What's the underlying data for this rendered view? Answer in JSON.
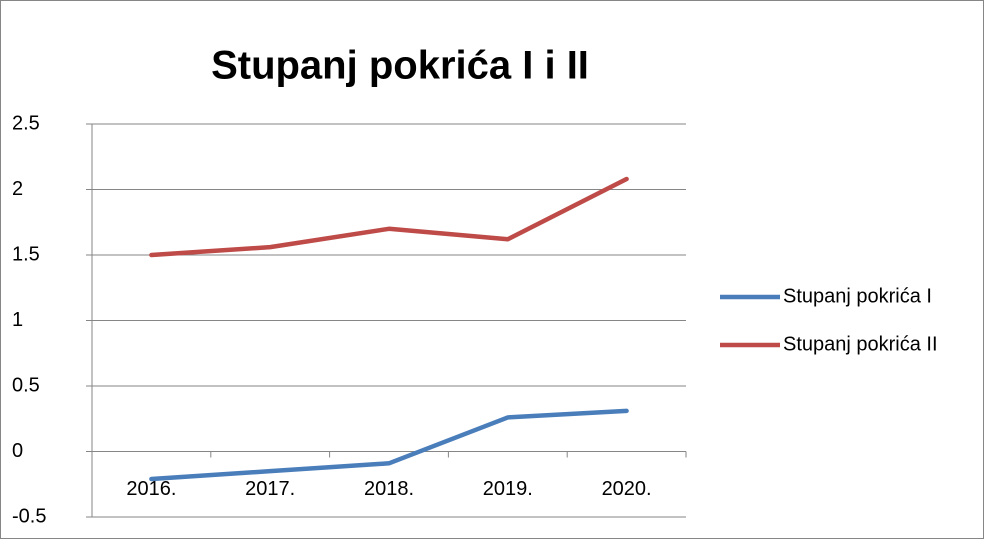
{
  "chart_data": {
    "type": "line",
    "title": "Stupanj pokrića I i II",
    "categories": [
      "2016.",
      "2017.",
      "2018.",
      "2019.",
      "2020."
    ],
    "series": [
      {
        "name": "Stupanj pokrića I",
        "color": "#4a7ebb",
        "values": [
          -0.21,
          -0.15,
          -0.09,
          0.26,
          0.31
        ]
      },
      {
        "name": "Stupanj pokrića II",
        "color": "#be4b48",
        "values": [
          1.5,
          1.56,
          1.7,
          1.62,
          2.08
        ]
      }
    ],
    "ylim": [
      -0.5,
      2.5
    ],
    "yticks": [
      -0.5,
      0,
      0.5,
      1,
      1.5,
      2,
      2.5
    ],
    "grid": true,
    "legend": "right"
  }
}
